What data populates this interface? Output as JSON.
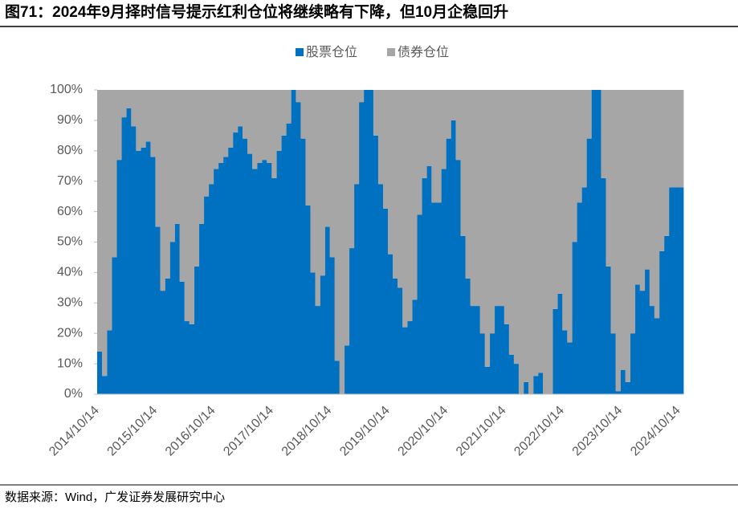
{
  "chart_data": {
    "type": "stacked-bar",
    "title": "图71：2024年9月择时信号提示红利仓位将继续略有下降，但10月企稳回升",
    "source": "数据来源：Wind，广发证券发展研究中心",
    "categories": [
      "2014/10/14",
      null,
      null,
      null,
      null,
      null,
      null,
      null,
      null,
      null,
      null,
      null,
      "2015/10/14",
      null,
      null,
      null,
      null,
      null,
      null,
      null,
      null,
      null,
      null,
      null,
      "2016/10/14",
      null,
      null,
      null,
      null,
      null,
      null,
      null,
      null,
      null,
      null,
      null,
      "2017/10/14",
      null,
      null,
      null,
      null,
      null,
      null,
      null,
      null,
      null,
      null,
      null,
      "2018/10/14",
      null,
      null,
      null,
      null,
      null,
      null,
      null,
      null,
      null,
      null,
      null,
      "2019/10/14",
      null,
      null,
      null,
      null,
      null,
      null,
      null,
      null,
      null,
      null,
      null,
      "2020/10/14",
      null,
      null,
      null,
      null,
      null,
      null,
      null,
      null,
      null,
      null,
      null,
      "2021/10/14",
      null,
      null,
      null,
      null,
      null,
      null,
      null,
      null,
      null,
      null,
      null,
      "2022/10/14",
      null,
      null,
      null,
      null,
      null,
      null,
      null,
      null,
      null,
      null,
      null,
      "2023/10/14",
      null,
      null,
      null,
      null,
      null,
      null,
      null,
      null,
      null,
      null,
      null,
      "2024/10/14"
    ],
    "series": [
      {
        "name": "股票仓位",
        "color": "#0070c0",
        "values": [
          14,
          6,
          21,
          45,
          77,
          91,
          94,
          88,
          80,
          81,
          83,
          78,
          55,
          34,
          38,
          50,
          56,
          37,
          24,
          23,
          42,
          56,
          65,
          69,
          74,
          76,
          78,
          81,
          86,
          88,
          84,
          79,
          74,
          76,
          77,
          76,
          71,
          80,
          85,
          89,
          100,
          96,
          84,
          62,
          40,
          29,
          39,
          55,
          45,
          11,
          0,
          16,
          48,
          69,
          96,
          100,
          100,
          85,
          69,
          61,
          46,
          38,
          35,
          22,
          24,
          31,
          59,
          71,
          75,
          63,
          63,
          74,
          84,
          90,
          77,
          52,
          38,
          29,
          29,
          20,
          9,
          20,
          29,
          29,
          23,
          13,
          10,
          0,
          4,
          0,
          6,
          7,
          0,
          0,
          28,
          33,
          21,
          17,
          50,
          63,
          68,
          84,
          100,
          100,
          71,
          42,
          20,
          1,
          8,
          4,
          20,
          36,
          34,
          41,
          29,
          25,
          47,
          52,
          68,
          68,
          68
        ]
      },
      {
        "name": "债券仓位",
        "color": "#a6a6a6",
        "values": [
          86,
          94,
          79,
          55,
          23,
          9,
          6,
          12,
          20,
          19,
          17,
          22,
          45,
          66,
          62,
          50,
          44,
          63,
          76,
          77,
          58,
          44,
          35,
          31,
          26,
          24,
          22,
          19,
          14,
          12,
          16,
          21,
          26,
          24,
          23,
          24,
          29,
          20,
          15,
          11,
          0,
          4,
          16,
          38,
          60,
          71,
          61,
          45,
          55,
          89,
          100,
          84,
          52,
          31,
          4,
          0,
          0,
          15,
          31,
          39,
          54,
          62,
          65,
          78,
          76,
          69,
          41,
          29,
          25,
          37,
          37,
          26,
          16,
          10,
          23,
          48,
          62,
          71,
          71,
          80,
          91,
          80,
          71,
          71,
          77,
          87,
          90,
          100,
          96,
          100,
          94,
          93,
          100,
          100,
          72,
          67,
          79,
          83,
          50,
          37,
          32,
          16,
          0,
          0,
          29,
          58,
          80,
          99,
          92,
          96,
          80,
          64,
          66,
          59,
          71,
          75,
          53,
          48,
          32,
          32,
          32
        ]
      }
    ],
    "ylim": [
      0,
      100
    ],
    "yticks": [
      {
        "value": 0,
        "label": "0%"
      },
      {
        "value": 10,
        "label": "10%"
      },
      {
        "value": 20,
        "label": "20%"
      },
      {
        "value": 30,
        "label": "30%"
      },
      {
        "value": 40,
        "label": "40%"
      },
      {
        "value": 50,
        "label": "50%"
      },
      {
        "value": 60,
        "label": "60%"
      },
      {
        "value": 70,
        "label": "70%"
      },
      {
        "value": 80,
        "label": "80%"
      },
      {
        "value": 90,
        "label": "90%"
      },
      {
        "value": 100,
        "label": "100%"
      }
    ],
    "legend": "top"
  }
}
